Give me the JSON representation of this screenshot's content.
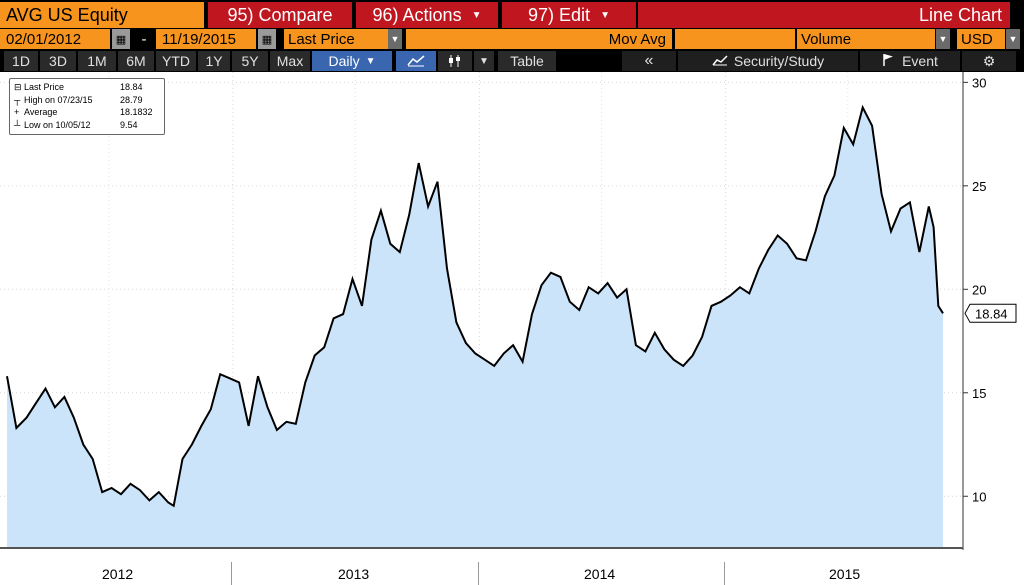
{
  "toolbar": {
    "ticker": "AVG US Equity",
    "compare": "95) Compare",
    "actions": "96) Actions",
    "edit": "97) Edit",
    "chart_type": "Line Chart"
  },
  "settings": {
    "start_date": "02/01/2012",
    "dash": "-",
    "end_date": "11/19/2015",
    "field": "Last Price",
    "mov_avg": "Mov Avg",
    "volume": "Volume",
    "currency": "USD"
  },
  "periods": [
    "1D",
    "3D",
    "1M",
    "6M",
    "YTD",
    "1Y",
    "5Y",
    "Max"
  ],
  "frequency": "Daily",
  "table_label": "Table",
  "collapse_label": "«",
  "security_study": "Security/Study",
  "event": "Event",
  "legend": {
    "items": [
      {
        "label": "Last Price",
        "value": "18.84"
      },
      {
        "label": "High on 07/23/15",
        "value": "28.79"
      },
      {
        "label": "Average",
        "value": "18.1832"
      },
      {
        "label": "Low on 10/05/12",
        "value": "9.54"
      }
    ]
  },
  "last_price_tag": "18.84",
  "colors": {
    "fill": "#cce4fa",
    "line": "#000000",
    "orange": "#f7941d",
    "red": "#c0161f",
    "active_blue": "#3a66b0"
  },
  "chart_data": {
    "type": "area",
    "series": [
      {
        "name": "Last Price"
      }
    ],
    "x": [
      "2012-02-01",
      "2012-02-15",
      "2012-03-01",
      "2012-03-15",
      "2012-03-29",
      "2012-04-12",
      "2012-04-26",
      "2012-05-10",
      "2012-05-24",
      "2012-06-07",
      "2012-06-21",
      "2012-07-05",
      "2012-07-19",
      "2012-08-02",
      "2012-08-16",
      "2012-08-30",
      "2012-09-13",
      "2012-09-27",
      "2012-10-05",
      "2012-10-18",
      "2012-11-01",
      "2012-11-15",
      "2012-11-29",
      "2012-12-13",
      "2012-12-27",
      "2013-01-10",
      "2013-01-24",
      "2013-02-07",
      "2013-02-21",
      "2013-03-07",
      "2013-03-21",
      "2013-04-04",
      "2013-04-18",
      "2013-05-02",
      "2013-05-16",
      "2013-05-30",
      "2013-06-13",
      "2013-06-27",
      "2013-07-11",
      "2013-07-25",
      "2013-08-08",
      "2013-08-22",
      "2013-09-05",
      "2013-09-19",
      "2013-10-03",
      "2013-10-17",
      "2013-10-31",
      "2013-11-14",
      "2013-11-28",
      "2013-12-12",
      "2013-12-26",
      "2014-01-09",
      "2014-01-23",
      "2014-02-06",
      "2014-02-20",
      "2014-03-06",
      "2014-03-20",
      "2014-04-03",
      "2014-04-17",
      "2014-05-01",
      "2014-05-15",
      "2014-05-29",
      "2014-06-12",
      "2014-06-26",
      "2014-07-10",
      "2014-07-24",
      "2014-08-07",
      "2014-08-21",
      "2014-09-04",
      "2014-09-18",
      "2014-10-02",
      "2014-10-16",
      "2014-10-30",
      "2014-11-13",
      "2014-11-27",
      "2014-12-11",
      "2014-12-25",
      "2015-01-08",
      "2015-01-22",
      "2015-02-05",
      "2015-02-19",
      "2015-03-05",
      "2015-03-19",
      "2015-04-02",
      "2015-04-16",
      "2015-04-30",
      "2015-05-14",
      "2015-05-28",
      "2015-06-11",
      "2015-06-25",
      "2015-07-09",
      "2015-07-23",
      "2015-08-06",
      "2015-08-20",
      "2015-09-03",
      "2015-09-17",
      "2015-10-01",
      "2015-10-15",
      "2015-10-29",
      "2015-11-05",
      "2015-11-12",
      "2015-11-19"
    ],
    "values": [
      15.8,
      13.3,
      13.8,
      14.5,
      15.2,
      14.3,
      14.8,
      13.8,
      12.5,
      11.8,
      10.2,
      10.4,
      10.1,
      10.6,
      10.3,
      9.8,
      10.2,
      9.7,
      9.54,
      11.8,
      12.5,
      13.4,
      14.2,
      15.9,
      15.7,
      15.5,
      13.4,
      15.8,
      14.3,
      13.2,
      13.6,
      13.5,
      15.5,
      16.8,
      17.2,
      18.6,
      18.8,
      20.5,
      19.2,
      22.4,
      23.8,
      22.2,
      21.8,
      23.6,
      26.1,
      24.0,
      25.2,
      21.0,
      18.4,
      17.4,
      16.9,
      16.6,
      16.3,
      16.9,
      17.3,
      16.5,
      18.8,
      20.2,
      20.8,
      20.6,
      19.4,
      19.0,
      20.1,
      19.8,
      20.3,
      19.6,
      20.0,
      17.3,
      17.0,
      17.9,
      17.1,
      16.6,
      16.3,
      16.8,
      17.7,
      19.2,
      19.4,
      19.7,
      20.1,
      19.8,
      21.0,
      21.9,
      22.6,
      22.2,
      21.5,
      21.4,
      22.8,
      24.5,
      25.5,
      27.8,
      27.0,
      28.79,
      27.9,
      24.6,
      22.8,
      23.9,
      24.2,
      21.8,
      24.0,
      23.0,
      19.2,
      18.84
    ],
    "ylim": [
      7.5,
      30.5
    ],
    "yticks": [
      10,
      15,
      20,
      25,
      30
    ],
    "xticks": [
      "2012",
      "2013",
      "2014",
      "2015"
    ],
    "x_axis_range": [
      "2012-02-01",
      "2015-11-19"
    ]
  }
}
